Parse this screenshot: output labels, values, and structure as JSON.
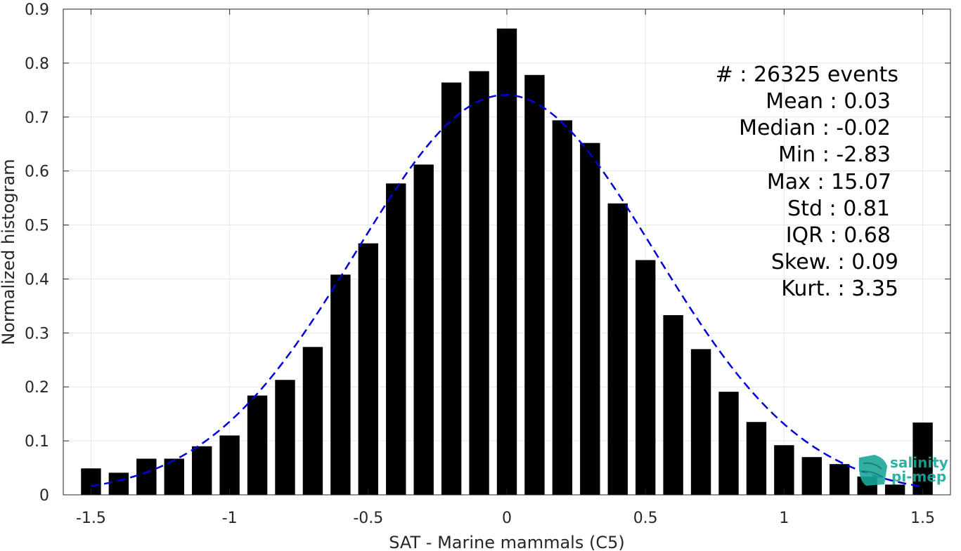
{
  "chart_data": {
    "type": "bar",
    "xlabel": "SAT - Marine mammals (C5)",
    "ylabel": "Normalized histogram",
    "xlim": [
      -1.6,
      1.6
    ],
    "ylim": [
      0,
      0.9
    ],
    "xticks": [
      -1.5,
      -1,
      -0.5,
      0,
      0.5,
      1,
      1.5
    ],
    "xtick_labels": [
      "-1.5",
      "-1",
      "-0.5",
      "0",
      "0.5",
      "1",
      "1.5"
    ],
    "yticks": [
      0,
      0.1,
      0.2,
      0.3,
      0.4,
      0.5,
      0.6,
      0.7,
      0.8,
      0.9
    ],
    "ytick_labels": [
      "0",
      "0.1",
      "0.2",
      "0.3",
      "0.4",
      "0.5",
      "0.6",
      "0.7",
      "0.8",
      "0.9"
    ],
    "grid": true,
    "bar_color": "#000000",
    "fit_color": "#0000dd",
    "bars": {
      "x": [
        -1.5,
        -1.4,
        -1.3,
        -1.2,
        -1.1,
        -1.0,
        -0.9,
        -0.8,
        -0.7,
        -0.6,
        -0.5,
        -0.4,
        -0.3,
        -0.2,
        -0.1,
        0.0,
        0.1,
        0.2,
        0.3,
        0.4,
        0.5,
        0.6,
        0.7,
        0.8,
        0.9,
        1.0,
        1.1,
        1.2,
        1.3,
        1.4,
        1.5
      ],
      "values": [
        0.049,
        0.041,
        0.067,
        0.067,
        0.09,
        0.11,
        0.184,
        0.213,
        0.274,
        0.408,
        0.466,
        0.577,
        0.612,
        0.764,
        0.785,
        0.864,
        0.778,
        0.694,
        0.652,
        0.54,
        0.435,
        0.333,
        0.27,
        0.191,
        0.135,
        0.092,
        0.07,
        0.057,
        0.034,
        0.019,
        0.134
      ]
    },
    "fit_curve": {
      "style": "dashed",
      "mean": -0.005,
      "std": 0.54,
      "peak": 0.741,
      "x_range": [
        -1.5,
        1.5
      ]
    }
  },
  "stats": {
    "count": "#  : 26325 events",
    "mean": "Mean : 0.03",
    "median": "Median : -0.02",
    "min": "Min : -2.83",
    "max": "Max : 15.07",
    "std": "Std : 0.81",
    "iqr": "IQR : 0.68",
    "skew": "Skew. : 0.09",
    "kurt": "Kurt. : 3.35"
  },
  "logo": {
    "line1": "salinity",
    "line2": "pi-mep",
    "color": "#1aa89a"
  }
}
